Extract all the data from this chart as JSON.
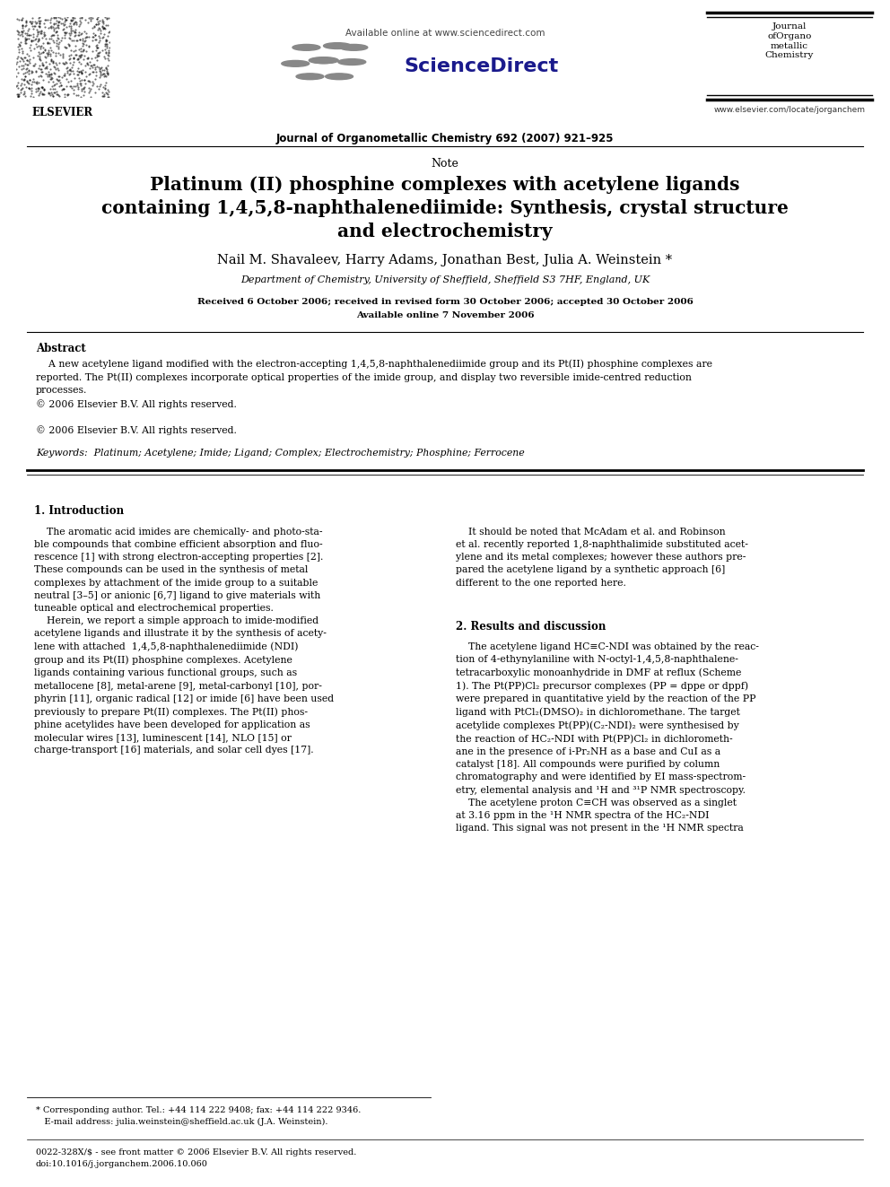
{
  "bg_color": "#ffffff",
  "header": {
    "available_online": "Available online at www.sciencedirect.com",
    "journal_line": "Journal of Organometallic Chemistry 692 (2007) 921–925",
    "journal_name_lines": [
      "Journal",
      "ofOrgano",
      "metallic",
      "Chemistry"
    ],
    "website": "www.elsevier.com/locate/jorganchem",
    "sciencedirect_text": "ScienceDirect",
    "elsevier_text": "ELSEVIER"
  },
  "note_label": "Note",
  "title_lines": [
    "Platinum (II) phosphine complexes with acetylene ligands",
    "containing 1,4,5,8-naphthalenediimide: Synthesis, crystal structure",
    "and electrochemistry"
  ],
  "authors": "Nail M. Shavaleev, Harry Adams, Jonathan Best, Julia A. Weinstein *",
  "affiliation": "Department of Chemistry, University of Sheffield, Sheffield S3 7HF, England, UK",
  "received": "Received 6 October 2006; received in revised form 30 October 2006; accepted 30 October 2006",
  "available": "Available online 7 November 2006",
  "abstract_label": "Abstract",
  "keywords_line": "Keywords:  Platinum; Acetylene; Imide; Ligand; Complex; Electrochemistry; Phosphine; Ferrocene",
  "section1_title": "1. Introduction",
  "section2_title": "2. Results and discussion",
  "footer_left": "0022-328X/$ - see front matter © 2006 Elsevier B.V. All rights reserved.",
  "footer_doi": "doi:10.1016/j.jorganchem.2006.10.060",
  "footnote_line1": "* Corresponding author. Tel.: +44 114 222 9408; fax: +44 114 222 9346.",
  "footnote_line2": "   E-mail address: julia.weinstein@sheffield.ac.uk (J.A. Weinstein).",
  "left_col_text": "    The aromatic acid imides are chemically- and photo-sta-\nble compounds that combine efficient absorption and fluo-\nrescence [1] with strong electron-accepting properties [2].\nThese compounds can be used in the synthesis of metal\ncomplexes by attachment of the imide group to a suitable\nneutral [3–5] or anionic [6,7] ligand to give materials with\ntuneable optical and electrochemical properties.\n    Herein, we report a simple approach to imide-modified\nacetylene ligands and illustrate it by the synthesis of acety-\nlene with attached  1,4,5,8-naphthalenediimide (NDI)\ngroup and its Pt(II) phosphine complexes. Acetylene\nligands containing various functional groups, such as\nmetallocene [8], metal-arene [9], metal-carbonyl [10], por-\nphyrin [11], organic radical [12] or imide [6] have been used\npreviously to prepare Pt(II) complexes. The Pt(II) phos-\nphine acetylides have been developed for application as\nmolecular wires [13], luminescent [14], NLO [15] or\ncharge-transport [16] materials, and solar cell dyes [17].",
  "right_col_text1": "    It should be noted that McAdam et al. and Robinson\net al. recently reported 1,8-naphthalimide substituted acet-\nylene and its metal complexes; however these authors pre-\npared the acetylene ligand by a synthetic approach [6]\ndifferent to the one reported here.",
  "right_col_text2": "    The acetylene ligand HC≡C-NDI was obtained by the reac-\ntion of 4-ethynylaniline with N-octyl-1,4,5,8-naphthalene-\ntetracarboxylic monoanhydride in DMF at reflux (Scheme\n1). The Pt(PP)Cl₂ precursor complexes (PP = dppe or dppf)\nwere prepared in quantitative yield by the reaction of the PP\nligand with PtCl₂(DMSO)₂ in dichloromethane. The target\nacetylide complexes Pt(PP)(C₂-NDI)₂ were synthesised by\nthe reaction of HC₂-NDI with Pt(PP)Cl₂ in dichlorometh-\nane in the presence of i-Pr₂NH as a base and CuI as a\ncatalyst [18]. All compounds were purified by column\nchromatography and were identified by EI mass-spectrom-\netry, elemental analysis and ¹H and ³¹P NMR spectroscopy.\n    The acetylene proton C≡CH was observed as a singlet\nat 3.16 ppm in the ¹H NMR spectra of the HC₂-NDI\nligand. This signal was not present in the ¹H NMR spectra",
  "abstract_body": "    A new acetylene ligand modified with the electron-accepting 1,4,5,8-naphthalenediimide group and its Pt(II) phosphine complexes are\nreported. The Pt(II) complexes incorporate optical properties of the imide group, and display two reversible imide-centred reduction\nprocesses.\n© 2006 Elsevier B.V. All rights reserved."
}
